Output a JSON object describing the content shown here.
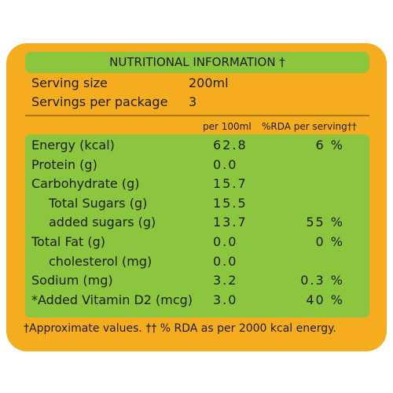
{
  "title": "NUTRITIONAL INFORMATION †",
  "serving": [
    {
      "label": "Serving size",
      "value": "200ml"
    },
    {
      "label": "Servings per package",
      "value": "3"
    }
  ],
  "columns": [
    "per 100ml",
    "%RDA per serving††"
  ],
  "rows": [
    {
      "label": "Energy (kcal)",
      "per100": "62.8",
      "rda": "6 %"
    },
    {
      "label": "Protein (g)",
      "per100": "0.0"
    },
    {
      "label": "Carbohydrate (g)",
      "per100": "15.7"
    },
    {
      "label": "Total Sugars (g)",
      "per100": "15.5"
    },
    {
      "label": "added sugars (g)",
      "per100": "13.7",
      "rda": "55 %"
    },
    {
      "label": "Total Fat (g)",
      "per100": "0.0",
      "rda": "0 %"
    },
    {
      "label": "cholesterol (mg)",
      "per100": "0.0"
    },
    {
      "label": "Sodium (mg)",
      "per100": "3.2",
      "rda": "0.3 %"
    },
    {
      "label": "*Added Vitamin D2 (mcg)",
      "per100": "3.0",
      "rda": "40 %"
    }
  ],
  "footnote": "†Approximate values. †† % RDA as per 2000 kcal energy."
}
